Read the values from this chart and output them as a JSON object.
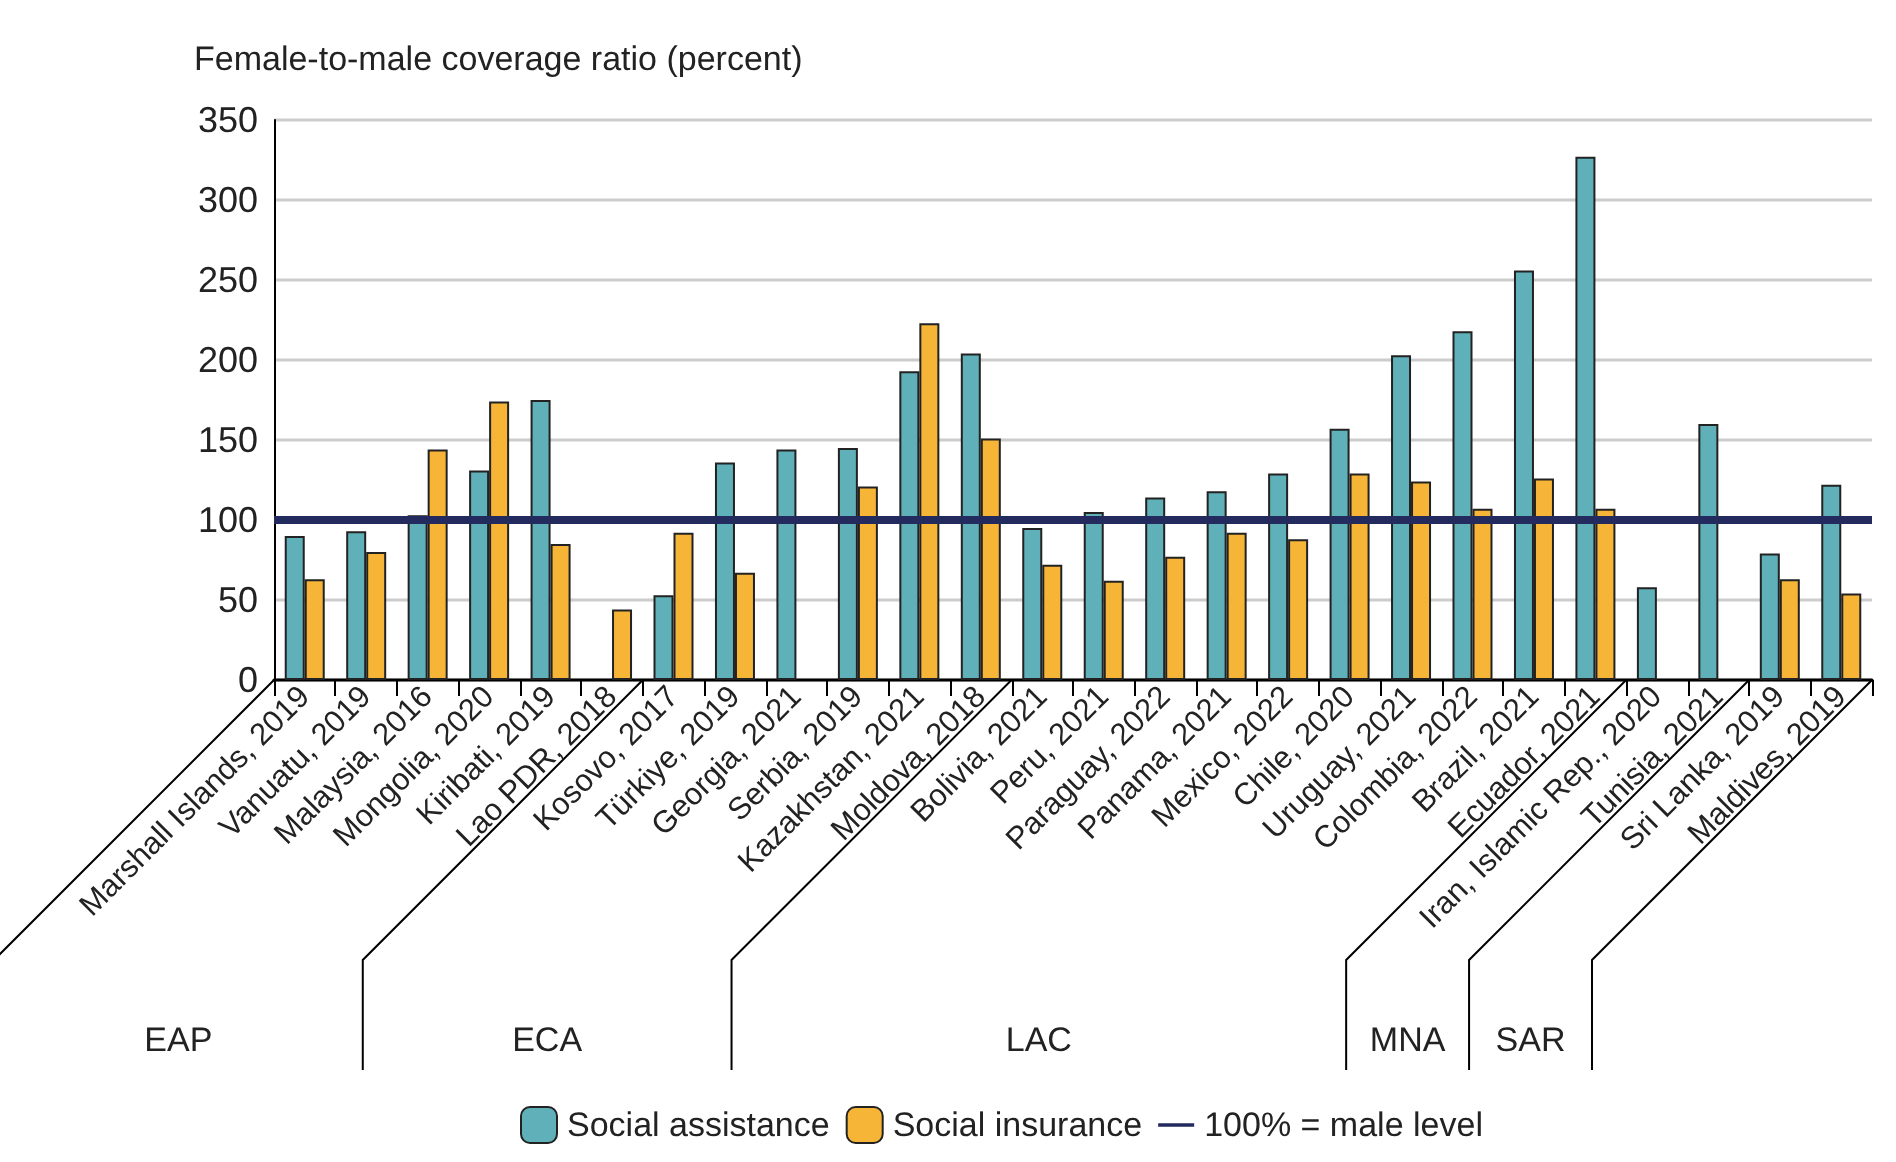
{
  "chart_data": {
    "type": "bar",
    "ylabel": "Female-to-male coverage ratio (percent)",
    "categories": [
      "Marshall Islands, 2019",
      "Vanuatu, 2019",
      "Malaysia, 2016",
      "Mongolia, 2020",
      "Kiribati, 2019",
      "Lao PDR, 2018",
      "Kosovo, 2017",
      "Türkiye, 2019",
      "Georgia, 2021",
      "Serbia, 2019",
      "Kazakhstan, 2021",
      "Moldova, 2018",
      "Bolivia, 2021",
      "Peru, 2021",
      "Paraguay, 2022",
      "Panama, 2021",
      "Mexico, 2022",
      "Chile, 2020",
      "Uruguay, 2021",
      "Colombia, 2022",
      "Brazil, 2021",
      "Ecuador, 2021",
      "Iran, Islamic Rep., 2020",
      "Tunisia, 2021",
      "Sri Lanka, 2019",
      "Maldives, 2019"
    ],
    "series": [
      {
        "name": "Social assistance",
        "color": "#5fb0b8",
        "values": [
          90,
          93,
          103,
          131,
          175,
          null,
          53,
          136,
          144,
          145,
          193,
          204,
          95,
          105,
          114,
          118,
          129,
          157,
          203,
          218,
          256,
          327,
          58,
          160,
          79,
          122
        ]
      },
      {
        "name": "Social insurance",
        "color": "#f7b538",
        "values": [
          63,
          80,
          144,
          174,
          85,
          44,
          92,
          67,
          null,
          121,
          223,
          151,
          72,
          62,
          77,
          92,
          88,
          129,
          124,
          107,
          126,
          107,
          null,
          null,
          63,
          54
        ]
      }
    ],
    "ylim": [
      0,
      350
    ],
    "yticks": [
      0,
      50,
      100,
      150,
      200,
      250,
      300,
      350
    ],
    "grid": "y",
    "legend": "bottom",
    "ref_lines": [
      {
        "axis": "y",
        "value": 100,
        "label": "100% = male level",
        "color": "#232a5e"
      }
    ],
    "annotations": [
      "EAP",
      "ECA",
      "LAC",
      "MNA",
      "SAR"
    ]
  }
}
